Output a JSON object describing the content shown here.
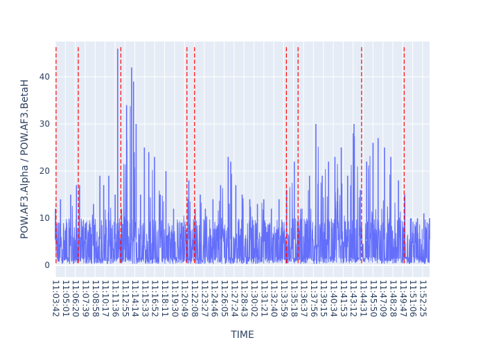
{
  "chart_data": {
    "type": "line",
    "title": "",
    "xlabel": "TIME",
    "ylabel": "POW.AF3.Alpha / POW.AF3.BetaH",
    "ylim": [
      -2.5,
      47.5
    ],
    "yticks": [
      0,
      10,
      20,
      30,
      40
    ],
    "xticks": [
      "11:03:42",
      "11:05:01",
      "11:06:20",
      "11:07:39",
      "11:08:58",
      "11:10:17",
      "11:11:36",
      "11:12:55",
      "11:14:14",
      "11:15:33",
      "11:16:52",
      "11:18:11",
      "11:19:30",
      "11:20:49",
      "11:22:08",
      "11:23:27",
      "11:24:46",
      "11:26:05",
      "11:27:24",
      "11:28:43",
      "11:30:02",
      "11:31:21",
      "11:32:40",
      "11:33:59",
      "11:35:18",
      "11:36:37",
      "11:37:56",
      "11:39:15",
      "11:40:34",
      "11:41:53",
      "11:43:12",
      "11:44:31",
      "11:45:50",
      "11:47:09",
      "11:48:28",
      "11:49:47",
      "11:51:06",
      "11:52:25"
    ],
    "x_range_seconds": [
      0,
      2945
    ],
    "series": [
      {
        "name": "",
        "color": "#636efa",
        "x": [
          0,
          40,
          120,
          165,
          190,
          240,
          300,
          350,
          380,
          420,
          470,
          490,
          520,
          560,
          600,
          615,
          620,
          635,
          670,
          700,
          735,
          780,
          825,
          870,
          930,
          990,
          1050,
          1100,
          1140,
          1180,
          1240,
          1300,
          1360,
          1380,
          1420,
          1470,
          1530,
          1590,
          1640,
          1700,
          1760,
          1820,
          1880,
          1940,
          2000,
          2050,
          2100,
          2150,
          2200,
          2250,
          2300,
          2350,
          2400,
          2450,
          2500,
          2540,
          2590,
          2640,
          2700,
          2750,
          2800,
          2850,
          2900,
          2945
        ],
        "y": [
          12,
          14,
          15,
          17,
          17,
          9,
          13,
          19,
          17,
          19,
          15,
          46,
          12,
          34,
          42,
          39,
          24,
          30,
          15,
          25,
          24,
          23,
          15,
          20,
          12,
          9,
          18,
          12,
          15,
          12,
          14,
          17,
          23,
          22,
          17,
          15,
          14,
          13,
          14,
          12,
          14,
          16,
          22,
          12,
          19,
          30,
          19,
          22,
          23,
          25,
          19,
          30,
          16,
          22,
          26,
          27,
          25,
          23,
          18,
          15,
          10,
          10,
          11,
          10
        ],
        "baseline_min": 0.3,
        "baseline_max": 5.5
      }
    ],
    "vertical_lines_seconds": [
      5,
      180,
      515,
      1035,
      1095,
      1818,
      1910,
      2410,
      2745
    ],
    "vertical_line_color": "#ff0000",
    "grid": true,
    "legend": "none"
  }
}
